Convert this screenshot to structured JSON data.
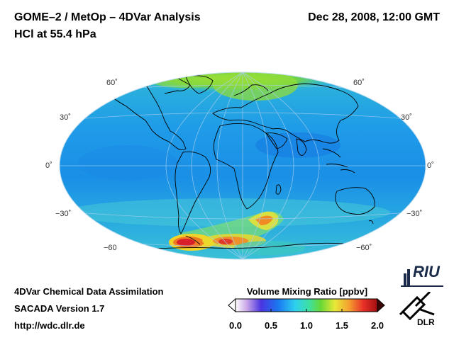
{
  "header": {
    "title_line1": "GOME–2 / MetOp – 4DVar Analysis",
    "title_line2": "HCl at 55.4 hPa",
    "datetime": "Dec 28, 2008, 12:00 GMT"
  },
  "map": {
    "projection": "Hammer-Aitoff (global)",
    "variable": "HCl",
    "latitude_labels_left": [
      "60˚",
      "30˚",
      "0˚",
      "−30˚",
      "−60"
    ],
    "latitude_labels_right": [
      "60˚",
      "30˚",
      "0˚",
      "−30˚",
      "−60˚"
    ],
    "colors": {
      "ocean_base": "#1f9be8",
      "high_latitude_north": "#6fd24a",
      "southern_band": "#3fd0c8",
      "southern_max": "#e8202a",
      "grid": "#9ec8ea",
      "coast": "#000000"
    }
  },
  "colorbar": {
    "title": "Volume Mixing Ratio [ppbv]",
    "min": 0.0,
    "max": 2.0,
    "ticks": [
      "0.0",
      "0.5",
      "1.0",
      "1.5",
      "2.0"
    ],
    "tick_values": [
      0.0,
      0.5,
      1.0,
      1.5,
      2.0
    ]
  },
  "footer": {
    "line1": "4DVar Chemical Data Assimilation",
    "line2": "SACADA Version 1.7",
    "line3": "http://wdc.dlr.de"
  },
  "logos": {
    "riu": "RIU",
    "dlr": "DLR"
  }
}
